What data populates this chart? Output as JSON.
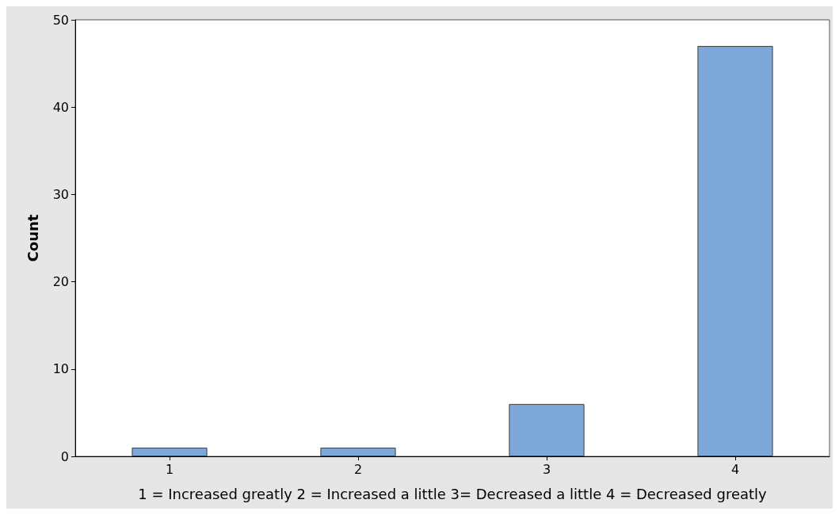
{
  "chart_data": {
    "type": "bar",
    "categories": [
      "1",
      "2",
      "3",
      "4"
    ],
    "values": [
      1,
      1,
      6,
      47
    ],
    "color": "#7da7d9",
    "xlabel": "1 = Increased greatly 2 = Increased a little 3= Decreased a little 4 = Decreased greatly",
    "ylabel": "Count",
    "ylim": [
      0,
      50
    ],
    "yticks": [
      0,
      10,
      20,
      30,
      40,
      50
    ],
    "grid": false
  }
}
